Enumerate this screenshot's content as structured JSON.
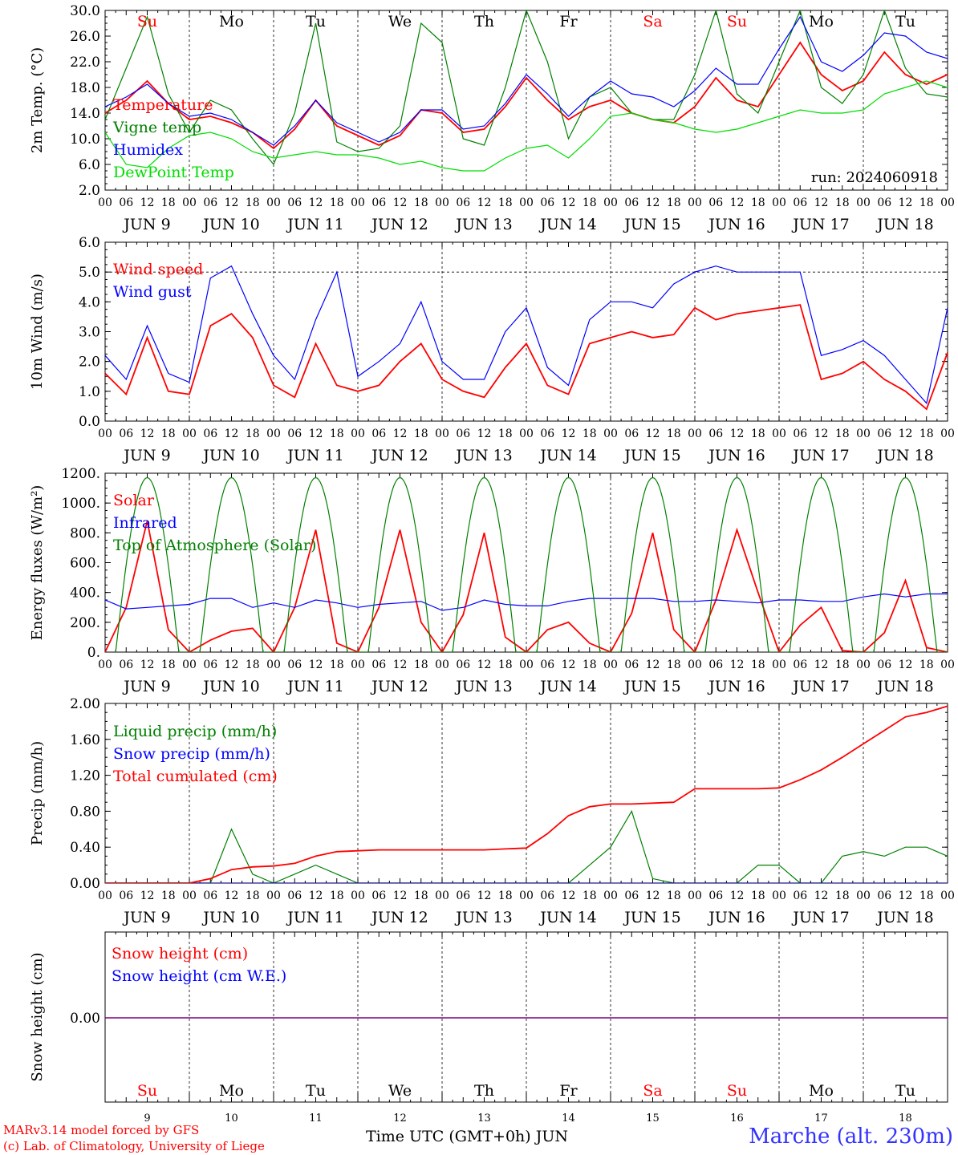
{
  "footer": {
    "credit_line1": "MARv3.14 model forced by GFS",
    "credit_line2": "(c) Lab. of Climatology, University of Liege",
    "x_title": "Time UTC (GMT+0h) JUN",
    "station": "Marche (alt. 230m)"
  },
  "days": [
    {
      "abbr": "Su",
      "date": "JUN  9",
      "num": "9",
      "weekend": true
    },
    {
      "abbr": "Mo",
      "date": "JUN 10",
      "num": "10",
      "weekend": false
    },
    {
      "abbr": "Tu",
      "date": "JUN 11",
      "num": "11",
      "weekend": false
    },
    {
      "abbr": "We",
      "date": "JUN 12",
      "num": "12",
      "weekend": false
    },
    {
      "abbr": "Th",
      "date": "JUN 13",
      "num": "13",
      "weekend": false
    },
    {
      "abbr": "Fr",
      "date": "JUN 14",
      "num": "14",
      "weekend": false
    },
    {
      "abbr": "Sa",
      "date": "JUN 15",
      "num": "15",
      "weekend": true
    },
    {
      "abbr": "Su",
      "date": "JUN 16",
      "num": "16",
      "weekend": true
    },
    {
      "abbr": "Mo",
      "date": "JUN 17",
      "num": "17",
      "weekend": false
    },
    {
      "abbr": "Tu",
      "date": "JUN 18",
      "num": "18",
      "weekend": false
    }
  ],
  "hour_labels": [
    "00",
    "06",
    "12",
    "18"
  ],
  "colors": {
    "red": "#ff0000",
    "blue": "#0000ff",
    "green": "#008000",
    "lightgreen": "#00dd00",
    "purple": "#800080"
  },
  "chart_data": [
    {
      "type": "line",
      "ylabel": "2m Temp. (°C)",
      "ylim": [
        2,
        30
      ],
      "yticks": [
        "2.0",
        "6.0",
        "10.0",
        "14.0",
        "18.0",
        "22.0",
        "26.0",
        "30.0"
      ],
      "annotation": "run: 2024060918",
      "x_hours": [
        0,
        6,
        12,
        18,
        24,
        30,
        36,
        42,
        48,
        54,
        60,
        66,
        72,
        78,
        84,
        90,
        96,
        102,
        108,
        114,
        120,
        126,
        132,
        138,
        144,
        150,
        156,
        162,
        168,
        174,
        180,
        186,
        192,
        198,
        204,
        210,
        216,
        222,
        228,
        234,
        240
      ],
      "series": [
        {
          "name": "Temperature",
          "color": "red",
          "values": [
            14.0,
            16.0,
            19.0,
            15.5,
            13.0,
            13.5,
            12.5,
            11.0,
            8.5,
            11.5,
            16.0,
            12.0,
            10.5,
            9.0,
            10.5,
            14.5,
            14.0,
            11.0,
            11.5,
            15.0,
            19.5,
            16.0,
            13.0,
            15.0,
            16.0,
            14.0,
            13.0,
            12.5,
            15.0,
            19.5,
            16.0,
            15.0,
            20.0,
            25.0,
            20.0,
            17.5,
            19.0,
            23.5,
            20.0,
            18.5,
            20.0
          ]
        },
        {
          "name": "Vigne temp",
          "color": "green",
          "values": [
            13.0,
            21.0,
            29.0,
            17.0,
            11.0,
            16.0,
            14.5,
            10.0,
            6.0,
            14.0,
            28.0,
            9.5,
            8.0,
            8.5,
            12.0,
            28.0,
            25.0,
            10.0,
            9.0,
            18.0,
            30.0,
            22.0,
            10.0,
            16.5,
            18.0,
            14.0,
            13.0,
            13.0,
            20.0,
            30.0,
            17.0,
            14.0,
            22.0,
            30.0,
            18.0,
            15.5,
            20.0,
            30.0,
            21.0,
            17.0,
            16.5
          ]
        },
        {
          "name": "Humidex",
          "color": "blue",
          "values": [
            15.0,
            16.5,
            18.5,
            15.5,
            13.5,
            14.0,
            13.0,
            11.0,
            9.0,
            12.0,
            16.0,
            12.5,
            11.0,
            9.5,
            11.0,
            14.5,
            14.5,
            11.5,
            12.0,
            15.5,
            20.0,
            17.0,
            13.5,
            16.5,
            19.0,
            17.0,
            16.5,
            15.0,
            17.5,
            21.0,
            18.5,
            18.5,
            24.0,
            29.0,
            22.0,
            20.5,
            23.0,
            26.5,
            26.0,
            23.5,
            22.5
          ]
        },
        {
          "name": "DewPoint Temp",
          "color": "lightgreen",
          "values": [
            11.0,
            6.0,
            5.5,
            8.5,
            10.5,
            11.0,
            10.0,
            8.0,
            7.0,
            7.5,
            8.0,
            7.5,
            7.5,
            7.0,
            6.0,
            6.5,
            5.5,
            5.0,
            5.0,
            7.0,
            8.5,
            9.0,
            7.0,
            10.0,
            13.5,
            14.0,
            13.0,
            12.5,
            11.5,
            11.0,
            11.5,
            12.5,
            13.5,
            14.5,
            14.0,
            14.0,
            14.5,
            17.0,
            18.0,
            19.0,
            18.0
          ]
        }
      ]
    },
    {
      "type": "line",
      "ylabel": "10m Wind (m/s)",
      "ylim": [
        0,
        6
      ],
      "yticks": [
        "0.0",
        "1.0",
        "2.0",
        "3.0",
        "4.0",
        "5.0",
        "6.0"
      ],
      "ref_line": 5.0,
      "x_hours": [
        0,
        6,
        12,
        18,
        24,
        30,
        36,
        42,
        48,
        54,
        60,
        66,
        72,
        78,
        84,
        90,
        96,
        102,
        108,
        114,
        120,
        126,
        132,
        138,
        144,
        150,
        156,
        162,
        168,
        174,
        180,
        186,
        192,
        198,
        204,
        210,
        216,
        222,
        228,
        234,
        240
      ],
      "series": [
        {
          "name": "Wind speed",
          "color": "red",
          "values": [
            1.6,
            0.9,
            2.8,
            1.0,
            0.9,
            3.2,
            3.6,
            2.8,
            1.2,
            0.8,
            2.6,
            1.2,
            1.0,
            1.2,
            2.0,
            2.6,
            1.4,
            1.0,
            0.8,
            1.8,
            2.6,
            1.2,
            0.9,
            2.6,
            2.8,
            3.0,
            2.8,
            2.9,
            3.8,
            3.4,
            3.6,
            3.7,
            3.8,
            3.9,
            1.4,
            1.6,
            2.0,
            1.4,
            1.0,
            0.4,
            2.3
          ]
        },
        {
          "name": "Wind gust",
          "color": "blue",
          "values": [
            2.2,
            1.4,
            3.2,
            1.6,
            1.3,
            4.8,
            5.2,
            3.6,
            2.2,
            1.4,
            3.4,
            5.0,
            1.5,
            2.0,
            2.6,
            4.0,
            2.0,
            1.4,
            1.4,
            3.0,
            3.8,
            1.8,
            1.2,
            3.4,
            4.0,
            4.0,
            3.8,
            4.6,
            5.0,
            5.2,
            5.0,
            5.0,
            5.0,
            5.0,
            2.2,
            2.4,
            2.7,
            2.2,
            1.4,
            0.6,
            3.8
          ]
        }
      ]
    },
    {
      "type": "line",
      "ylabel": "Energy fluxes (W/m²)",
      "ylim": [
        0,
        1200
      ],
      "yticks": [
        "0.",
        "200.",
        "400.",
        "600.",
        "800.",
        "1000.",
        "1200."
      ],
      "x_hours": [
        0,
        6,
        12,
        18,
        24,
        30,
        36,
        42,
        48,
        54,
        60,
        66,
        72,
        78,
        84,
        90,
        96,
        102,
        108,
        114,
        120,
        126,
        132,
        138,
        144,
        150,
        156,
        162,
        168,
        174,
        180,
        186,
        192,
        198,
        204,
        210,
        216,
        222,
        228,
        234,
        240
      ],
      "series": [
        {
          "name": "Solar",
          "color": "red",
          "values": [
            0,
            300,
            880,
            150,
            0,
            80,
            140,
            160,
            0,
            300,
            820,
            60,
            0,
            300,
            820,
            200,
            0,
            250,
            800,
            100,
            0,
            150,
            200,
            60,
            0,
            260,
            800,
            150,
            0,
            350,
            820,
            400,
            0,
            180,
            300,
            10,
            0,
            130,
            480,
            30,
            0
          ]
        },
        {
          "name": "Infrared",
          "color": "blue",
          "values": [
            350,
            290,
            300,
            310,
            320,
            360,
            360,
            300,
            330,
            300,
            350,
            330,
            300,
            320,
            330,
            340,
            280,
            300,
            350,
            320,
            310,
            310,
            340,
            360,
            360,
            360,
            360,
            340,
            340,
            350,
            340,
            330,
            350,
            350,
            340,
            340,
            370,
            390,
            370,
            390,
            390
          ]
        },
        {
          "name": "Top of Atmosphere (Solar)",
          "color": "green",
          "daily_peak": 1170,
          "values": [
            0,
            700,
            1170,
            700,
            0,
            700,
            1170,
            700,
            0,
            700,
            1170,
            700,
            0,
            700,
            1170,
            700,
            0,
            700,
            1170,
            700,
            0,
            700,
            1170,
            700,
            0,
            700,
            1170,
            700,
            0,
            700,
            1170,
            700,
            0,
            700,
            1170,
            700,
            0,
            700,
            1170,
            700,
            0
          ]
        }
      ]
    },
    {
      "type": "line",
      "ylabel": "Precip (mm/h)",
      "ylim": [
        0,
        2
      ],
      "yticks": [
        "0.00",
        "0.40",
        "0.80",
        "1.20",
        "1.60",
        "2.00"
      ],
      "x_hours": [
        0,
        6,
        12,
        18,
        24,
        30,
        36,
        42,
        48,
        54,
        60,
        66,
        72,
        78,
        84,
        90,
        96,
        102,
        108,
        114,
        120,
        126,
        132,
        138,
        144,
        150,
        156,
        162,
        168,
        174,
        180,
        186,
        192,
        198,
        204,
        210,
        216,
        222,
        228,
        234,
        240
      ],
      "series": [
        {
          "name": "Liquid precip (mm/h)",
          "color": "green",
          "values": [
            0,
            0,
            0,
            0,
            0,
            0,
            0.6,
            0.1,
            0,
            0.1,
            0.2,
            0.1,
            0,
            0,
            0,
            0,
            0,
            0,
            0,
            0,
            0,
            0,
            0,
            0.2,
            0.4,
            0.8,
            0.05,
            0,
            0,
            0,
            0,
            0.2,
            0.2,
            0,
            0,
            0.3,
            0.35,
            0.3,
            0.4,
            0.4,
            0.3
          ]
        },
        {
          "name": "Snow precip (mm/h)",
          "color": "blue",
          "values": [
            0,
            0,
            0,
            0,
            0,
            0,
            0,
            0,
            0,
            0,
            0,
            0,
            0,
            0,
            0,
            0,
            0,
            0,
            0,
            0,
            0,
            0,
            0,
            0,
            0,
            0,
            0,
            0,
            0,
            0,
            0,
            0,
            0,
            0,
            0,
            0,
            0,
            0,
            0,
            0,
            0
          ]
        },
        {
          "name": "Total cumulated (cm)",
          "color": "red",
          "values": [
            0,
            0,
            0,
            0,
            0,
            0.05,
            0.15,
            0.18,
            0.19,
            0.22,
            0.3,
            0.35,
            0.36,
            0.37,
            0.37,
            0.37,
            0.37,
            0.37,
            0.37,
            0.38,
            0.39,
            0.55,
            0.75,
            0.85,
            0.88,
            0.88,
            0.89,
            0.9,
            1.05,
            1.05,
            1.05,
            1.05,
            1.06,
            1.15,
            1.26,
            1.4,
            1.55,
            1.7,
            1.85,
            1.9,
            1.97
          ]
        }
      ]
    },
    {
      "type": "line",
      "ylabel": "Snow height (cm)",
      "yticks": [
        "0.00"
      ],
      "x_hours": [
        0,
        240
      ],
      "series": [
        {
          "name": "Snow height (cm)",
          "color": "red",
          "values": [
            0,
            0
          ]
        },
        {
          "name": "Snow height (cm W.E.)",
          "color": "blue",
          "values": [
            0,
            0
          ]
        }
      ]
    }
  ]
}
